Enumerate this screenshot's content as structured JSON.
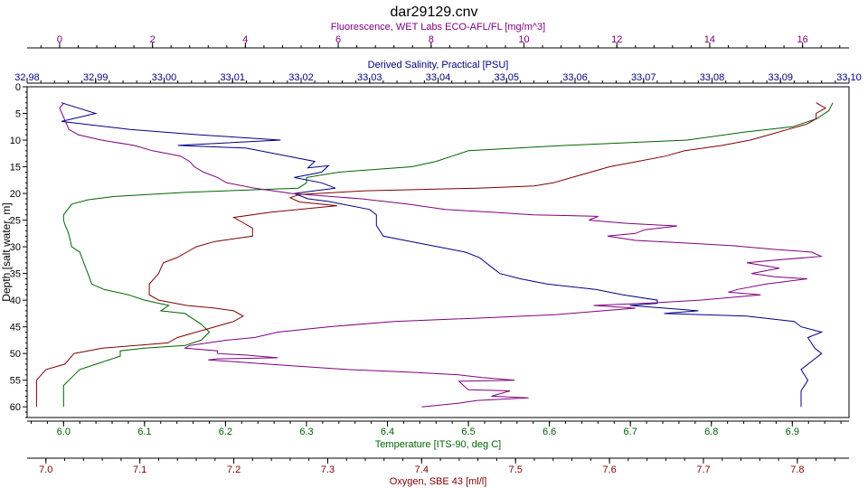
{
  "chart_data": {
    "type": "line",
    "title": "dar29129.cnv",
    "ylabel": "Depth [salt water, m]",
    "ylim": [
      0,
      62
    ],
    "y_inverted": true,
    "y_ticks": [
      "0",
      "5",
      "10",
      "15",
      "20",
      "25",
      "30",
      "35",
      "40",
      "45",
      "50",
      "55",
      "60"
    ],
    "grid": false,
    "axes": {
      "fluorescence": {
        "label": "Fluorescence, WET Labs ECO-AFL/FL [mg/m^3]",
        "position": "top-outer",
        "color": "#800080",
        "range": [
          -0.7,
          17.0
        ],
        "ticks": [
          0,
          2,
          4,
          6,
          8,
          10,
          12,
          14,
          16
        ]
      },
      "salinity": {
        "label": "Derived Salinity, Practical [PSU]",
        "position": "top-inner",
        "color": "#000080",
        "range": [
          32.98,
          33.1
        ],
        "ticks": [
          "32,98",
          "32,99",
          "33,00",
          "33,01",
          "33,02",
          "33,03",
          "33,04",
          "33,05",
          "33,06",
          "33,07",
          "33,08",
          "33,09",
          "33,10"
        ]
      },
      "temperature": {
        "label": "Temperature [ITS-90, deg C]",
        "position": "bottom-inner",
        "color": "#006400",
        "range": [
          5.955,
          6.97
        ],
        "ticks": [
          "6.0",
          "6.1",
          "6.2",
          "6.3",
          "6.4",
          "6.5",
          "6.6",
          "6.7",
          "6.8",
          "6.9"
        ]
      },
      "oxygen": {
        "label": "Oxygen, SBE 43 [ml/l]",
        "position": "bottom-outer",
        "color": "#800000",
        "range": [
          6.98,
          7.855
        ],
        "ticks": [
          "7.0",
          "7.1",
          "7.2",
          "7.3",
          "7.4",
          "7.5",
          "7.6",
          "7.7",
          "7.8"
        ]
      }
    },
    "series": [
      {
        "axis": "temperature",
        "color": "#006400",
        "points": [
          [
            6.95,
            3
          ],
          [
            6.945,
            4.5
          ],
          [
            6.93,
            6
          ],
          [
            6.9,
            7.5
          ],
          [
            6.84,
            8.5
          ],
          [
            6.77,
            10
          ],
          [
            6.62,
            11
          ],
          [
            6.5,
            12
          ],
          [
            6.48,
            13
          ],
          [
            6.46,
            14
          ],
          [
            6.43,
            15
          ],
          [
            6.34,
            16
          ],
          [
            6.3,
            17
          ],
          [
            6.3,
            18
          ],
          [
            6.29,
            19
          ],
          [
            6.15,
            19.8
          ],
          [
            6.06,
            20.6
          ],
          [
            6.03,
            21.2
          ],
          [
            6.01,
            22
          ],
          [
            6.005,
            23
          ],
          [
            6.0,
            24
          ],
          [
            6.0,
            25
          ],
          [
            6.002,
            26
          ],
          [
            6.005,
            27
          ],
          [
            6.007,
            28
          ],
          [
            6.01,
            30
          ],
          [
            6.02,
            31
          ],
          [
            6.025,
            33
          ],
          [
            6.03,
            35
          ],
          [
            6.035,
            37
          ],
          [
            6.05,
            38
          ],
          [
            6.08,
            39
          ],
          [
            6.1,
            40
          ],
          [
            6.13,
            41
          ],
          [
            6.12,
            42
          ],
          [
            6.15,
            42.5
          ],
          [
            6.16,
            43.5
          ],
          [
            6.17,
            44.5
          ],
          [
            6.18,
            46
          ],
          [
            6.17,
            47.5
          ],
          [
            6.15,
            48.5
          ],
          [
            6.1,
            49
          ],
          [
            6.07,
            49.5
          ],
          [
            6.07,
            50.5
          ],
          [
            6.04,
            52
          ],
          [
            6.02,
            53
          ],
          [
            6.01,
            54.5
          ],
          [
            6.0,
            56
          ],
          [
            6.0,
            58
          ],
          [
            6.0,
            60
          ]
        ]
      },
      {
        "axis": "salinity",
        "color": "#000080",
        "points": [
          [
            32.985,
            3
          ],
          [
            32.99,
            5
          ],
          [
            32.985,
            6.5
          ],
          [
            32.995,
            8
          ],
          [
            33.005,
            9
          ],
          [
            33.017,
            10
          ],
          [
            33.002,
            11
          ],
          [
            33.012,
            11.5
          ],
          [
            33.018,
            13
          ],
          [
            33.022,
            14
          ],
          [
            33.021,
            15.2
          ],
          [
            33.024,
            14.8
          ],
          [
            33.023,
            16
          ],
          [
            33.019,
            17
          ],
          [
            33.023,
            18
          ],
          [
            33.025,
            19
          ],
          [
            33.022,
            19.5
          ],
          [
            33.019,
            20
          ],
          [
            33.021,
            21
          ],
          [
            33.024,
            21.5
          ],
          [
            33.026,
            22
          ],
          [
            33.03,
            23
          ],
          [
            33.031,
            24
          ],
          [
            33.031,
            26
          ],
          [
            33.032,
            28
          ],
          [
            33.036,
            29
          ],
          [
            33.04,
            30
          ],
          [
            33.044,
            31
          ],
          [
            33.046,
            32
          ],
          [
            33.048,
            34
          ],
          [
            33.049,
            35
          ],
          [
            33.052,
            36
          ],
          [
            33.056,
            37
          ],
          [
            33.063,
            38
          ],
          [
            33.067,
            39
          ],
          [
            33.072,
            40
          ],
          [
            33.072,
            40.6
          ],
          [
            33.068,
            41
          ],
          [
            33.078,
            42
          ],
          [
            33.073,
            42.5
          ],
          [
            33.085,
            43
          ],
          [
            33.092,
            44
          ],
          [
            33.093,
            45
          ],
          [
            33.096,
            46
          ],
          [
            33.094,
            47
          ],
          [
            33.095,
            49
          ],
          [
            33.096,
            50
          ],
          [
            33.095,
            51
          ],
          [
            33.093,
            53
          ],
          [
            33.094,
            55
          ],
          [
            33.093,
            57
          ],
          [
            33.093,
            60
          ]
        ]
      },
      {
        "axis": "fluorescence",
        "color": "#800080",
        "points": [
          [
            0.1,
            3
          ],
          [
            0.0,
            4
          ],
          [
            0.1,
            6
          ],
          [
            0.2,
            8
          ],
          [
            0.4,
            9
          ],
          [
            0.9,
            10
          ],
          [
            1.6,
            11
          ],
          [
            2.0,
            12
          ],
          [
            2.6,
            13
          ],
          [
            2.8,
            14
          ],
          [
            2.9,
            15
          ],
          [
            3.1,
            16
          ],
          [
            3.4,
            17
          ],
          [
            3.6,
            18
          ],
          [
            4.2,
            19
          ],
          [
            5.0,
            20
          ],
          [
            6.5,
            21
          ],
          [
            7.5,
            22
          ],
          [
            8.3,
            23
          ],
          [
            9.3,
            23.5
          ],
          [
            10.2,
            24
          ],
          [
            11.6,
            24.3
          ],
          [
            11.4,
            25
          ],
          [
            12.2,
            25.6
          ],
          [
            13.3,
            26.1
          ],
          [
            12.6,
            26.8
          ],
          [
            12.4,
            27.5
          ],
          [
            11.8,
            28.0
          ],
          [
            12.4,
            28.8
          ],
          [
            13.5,
            29.3
          ],
          [
            14.5,
            29.8
          ],
          [
            15.4,
            30.5
          ],
          [
            16.2,
            31
          ],
          [
            16.4,
            31.8
          ],
          [
            15.4,
            32.5
          ],
          [
            14.8,
            33
          ],
          [
            15.5,
            34
          ],
          [
            14.9,
            35
          ],
          [
            15.4,
            35.6
          ],
          [
            16.1,
            36
          ],
          [
            15.2,
            37
          ],
          [
            14.6,
            38
          ],
          [
            14.4,
            38.5
          ],
          [
            15.1,
            39
          ],
          [
            13.8,
            40
          ],
          [
            12.8,
            40.5
          ],
          [
            11.5,
            41
          ],
          [
            12.4,
            41.5
          ],
          [
            11.7,
            42
          ],
          [
            10.7,
            42.7
          ],
          [
            9.2,
            43.3
          ],
          [
            7.2,
            44
          ],
          [
            5.8,
            45
          ],
          [
            4.7,
            46
          ],
          [
            4.2,
            47
          ],
          [
            3.6,
            47.5
          ],
          [
            3.2,
            48
          ],
          [
            2.8,
            48.5
          ],
          [
            2.7,
            49
          ],
          [
            3.4,
            49.5
          ],
          [
            3.4,
            50
          ],
          [
            4.0,
            50.3
          ],
          [
            4.7,
            50.8
          ],
          [
            3.4,
            51
          ],
          [
            3.2,
            51.2
          ],
          [
            4.5,
            52
          ],
          [
            6.2,
            53
          ],
          [
            7.5,
            53.5
          ],
          [
            8.6,
            54
          ],
          [
            9.1,
            54.5
          ],
          [
            9.8,
            55
          ],
          [
            8.6,
            55.2
          ],
          [
            8.7,
            56
          ],
          [
            8.8,
            56.8
          ],
          [
            9.7,
            57
          ],
          [
            9.3,
            58
          ],
          [
            10.1,
            58.3
          ],
          [
            9.0,
            58.8
          ],
          [
            8.6,
            59.3
          ],
          [
            7.8,
            60
          ]
        ]
      },
      {
        "axis": "oxygen",
        "color": "#800000",
        "points": [
          [
            7.82,
            3
          ],
          [
            7.83,
            4
          ],
          [
            7.82,
            5
          ],
          [
            7.82,
            6
          ],
          [
            7.81,
            7
          ],
          [
            7.79,
            8
          ],
          [
            7.77,
            9
          ],
          [
            7.75,
            10
          ],
          [
            7.72,
            11
          ],
          [
            7.68,
            12
          ],
          [
            7.66,
            13
          ],
          [
            7.63,
            14
          ],
          [
            7.6,
            15
          ],
          [
            7.58,
            16
          ],
          [
            7.56,
            17
          ],
          [
            7.54,
            18
          ],
          [
            7.52,
            18.6
          ],
          [
            7.46,
            19
          ],
          [
            7.34,
            19.5
          ],
          [
            7.27,
            20.2
          ],
          [
            7.26,
            20.8
          ],
          [
            7.27,
            21.6
          ],
          [
            7.31,
            22.3
          ],
          [
            7.24,
            23.5
          ],
          [
            7.2,
            24.5
          ],
          [
            7.21,
            25.5
          ],
          [
            7.22,
            26.5
          ],
          [
            7.22,
            28
          ],
          [
            7.18,
            29
          ],
          [
            7.16,
            30
          ],
          [
            7.15,
            31
          ],
          [
            7.14,
            32
          ],
          [
            7.125,
            33
          ],
          [
            7.12,
            35
          ],
          [
            7.11,
            37
          ],
          [
            7.11,
            38
          ],
          [
            7.11,
            39
          ],
          [
            7.12,
            40
          ],
          [
            7.15,
            41
          ],
          [
            7.18,
            41.5
          ],
          [
            7.2,
            42
          ],
          [
            7.21,
            43
          ],
          [
            7.2,
            44
          ],
          [
            7.18,
            45
          ],
          [
            7.16,
            46
          ],
          [
            7.14,
            47
          ],
          [
            7.13,
            48
          ],
          [
            7.06,
            49
          ],
          [
            7.03,
            50
          ],
          [
            7.02,
            52
          ],
          [
            7.0,
            53
          ],
          [
            6.99,
            55
          ],
          [
            6.99,
            57
          ],
          [
            6.99,
            60
          ]
        ]
      }
    ]
  }
}
